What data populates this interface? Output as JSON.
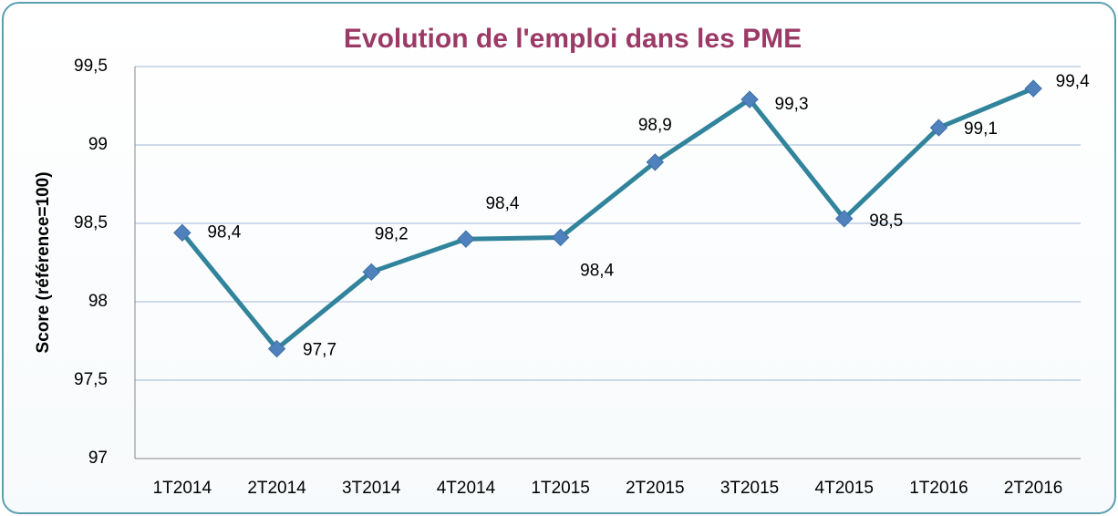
{
  "chart_data": {
    "type": "line",
    "title": "Evolution de l'emploi dans les PME",
    "y_label": "Score (référence=100)",
    "categories": [
      "1T2014",
      "2T2014",
      "3T2014",
      "4T2014",
      "1T2015",
      "2T2015",
      "3T2015",
      "4T2015",
      "1T2016",
      "2T2016"
    ],
    "series": [
      {
        "color": "#31849b",
        "marker_color": "#4f81bd",
        "values": [
          98.44,
          97.7,
          98.19,
          98.4,
          98.41,
          98.89,
          99.29,
          98.53,
          99.11,
          99.36
        ],
        "value_labels": [
          "98,4",
          "97,7",
          "98,2",
          "98,4",
          "98,4",
          "98,9",
          "99,3",
          "98,5",
          "99,1",
          "99,4"
        ]
      }
    ],
    "ylim": [
      97,
      99.5
    ],
    "yticks": [
      97,
      {
        "value": 97.5,
        "label": "97,5"
      },
      98,
      {
        "value": 98.5,
        "label": "98,5"
      },
      99,
      {
        "value": 99.5,
        "label": "99,5"
      }
    ],
    "grid": true
  }
}
